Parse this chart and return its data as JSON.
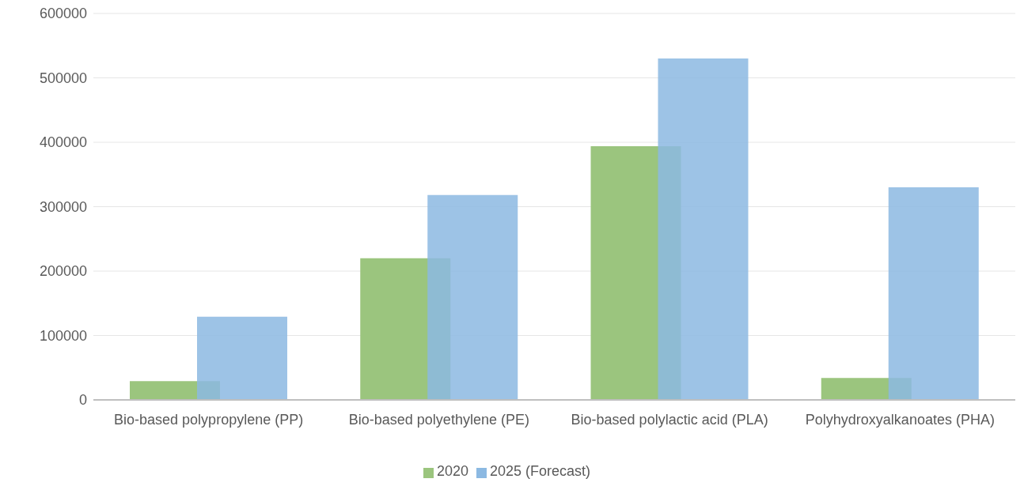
{
  "chart_data": {
    "type": "bar",
    "categories": [
      "Bio-based polypropylene (PP)",
      "Bio-based polyethylene (PE)",
      "Bio-based polylactic acid (PLA)",
      "Polyhydroxyalkanoates (PHA)"
    ],
    "series": [
      {
        "name": "2020",
        "color": "#9bc57e",
        "values": [
          29000,
          220000,
          394000,
          34000
        ]
      },
      {
        "name": "2025 (Forecast)",
        "color": "#8cb9e2",
        "values": [
          129000,
          318000,
          530000,
          330000
        ]
      }
    ],
    "ylim": [
      0,
      600000
    ],
    "yticks": [
      0,
      100000,
      200000,
      300000,
      400000,
      500000,
      600000
    ],
    "grid": "y",
    "legend": "bottom"
  }
}
